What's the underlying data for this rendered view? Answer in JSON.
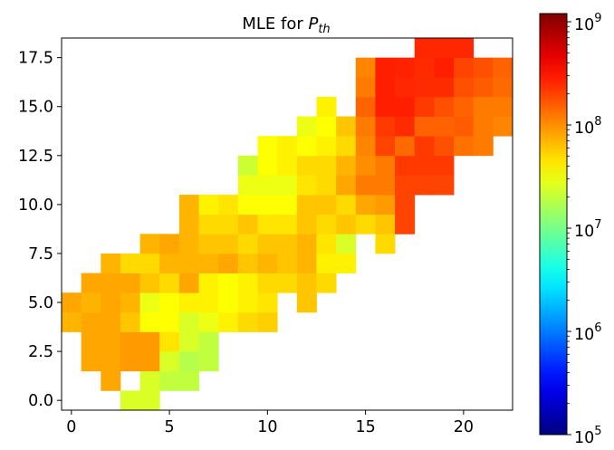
{
  "chart_data": {
    "type": "heatmap",
    "title": "MLE for P_th",
    "title_parts": {
      "prefix": "MLE for ",
      "var": "P",
      "sub": "th"
    },
    "xlabel": "",
    "ylabel": "",
    "xlim": [
      -0.5,
      22.5
    ],
    "ylim": [
      -0.5,
      18.5
    ],
    "x_ticks": [
      0,
      5,
      10,
      15,
      20
    ],
    "x_tick_labels": [
      "0",
      "5",
      "10",
      "15",
      "20"
    ],
    "y_ticks": [
      0.0,
      2.5,
      5.0,
      7.5,
      10.0,
      12.5,
      15.0,
      17.5
    ],
    "y_tick_labels": [
      "0.0",
      "2.5",
      "5.0",
      "7.5",
      "10.0",
      "12.5",
      "15.0",
      "17.5"
    ],
    "colormap": "jet",
    "color_scale": "log",
    "colorbar": {
      "position": "right",
      "range": [
        100000,
        1200000000
      ],
      "ticks": [
        100000,
        1000000,
        10000000,
        100000000,
        1000000000
      ],
      "tick_labels": [
        {
          "base": "10",
          "exp": "5"
        },
        {
          "base": "10",
          "exp": "6"
        },
        {
          "base": "10",
          "exp": "7"
        },
        {
          "base": "10",
          "exp": "8"
        },
        {
          "base": "10",
          "exp": "9"
        }
      ]
    },
    "grid": false,
    "cells": [
      [
        3,
        0,
        25000000.0
      ],
      [
        4,
        0,
        25000000.0
      ],
      [
        2,
        1,
        80000000.0
      ],
      [
        4,
        1,
        25000000.0
      ],
      [
        5,
        1,
        20000000.0
      ],
      [
        6,
        1,
        20000000.0
      ],
      [
        1,
        2,
        80000000.0
      ],
      [
        2,
        2,
        80000000.0
      ],
      [
        3,
        2,
        90000000.0
      ],
      [
        4,
        2,
        90000000.0
      ],
      [
        5,
        2,
        25000000.0
      ],
      [
        6,
        2,
        18000000.0
      ],
      [
        7,
        2,
        20000000.0
      ],
      [
        1,
        3,
        80000000.0
      ],
      [
        2,
        3,
        80000000.0
      ],
      [
        3,
        3,
        90000000.0
      ],
      [
        4,
        3,
        90000000.0
      ],
      [
        5,
        3,
        45000000.0
      ],
      [
        6,
        3,
        25000000.0
      ],
      [
        7,
        3,
        20000000.0
      ],
      [
        0,
        4,
        70000000.0
      ],
      [
        1,
        4,
        80000000.0
      ],
      [
        2,
        4,
        80000000.0
      ],
      [
        3,
        4,
        60000000.0
      ],
      [
        4,
        4,
        35000000.0
      ],
      [
        5,
        4,
        35000000.0
      ],
      [
        6,
        4,
        25000000.0
      ],
      [
        7,
        4,
        30000000.0
      ],
      [
        8,
        4,
        40000000.0
      ],
      [
        9,
        4,
        50000000.0
      ],
      [
        10,
        4,
        55000000.0
      ],
      [
        0,
        5,
        80000000.0
      ],
      [
        1,
        5,
        70000000.0
      ],
      [
        2,
        5,
        80000000.0
      ],
      [
        3,
        5,
        70000000.0
      ],
      [
        4,
        5,
        30000000.0
      ],
      [
        5,
        5,
        35000000.0
      ],
      [
        6,
        5,
        40000000.0
      ],
      [
        7,
        5,
        40000000.0
      ],
      [
        8,
        5,
        35000000.0
      ],
      [
        9,
        5,
        40000000.0
      ],
      [
        10,
        5,
        45000000.0
      ],
      [
        12,
        5,
        60000000.0
      ],
      [
        1,
        6,
        80000000.0
      ],
      [
        2,
        6,
        80000000.0
      ],
      [
        3,
        6,
        80000000.0
      ],
      [
        4,
        6,
        60000000.0
      ],
      [
        5,
        6,
        50000000.0
      ],
      [
        6,
        6,
        80000000.0
      ],
      [
        7,
        6,
        40000000.0
      ],
      [
        8,
        6,
        35000000.0
      ],
      [
        9,
        6,
        40000000.0
      ],
      [
        10,
        6,
        50000000.0
      ],
      [
        11,
        6,
        50000000.0
      ],
      [
        12,
        6,
        60000000.0
      ],
      [
        13,
        6,
        50000000.0
      ],
      [
        2,
        7,
        70000000.0
      ],
      [
        3,
        7,
        50000000.0
      ],
      [
        4,
        7,
        50000000.0
      ],
      [
        5,
        7,
        70000000.0
      ],
      [
        6,
        7,
        70000000.0
      ],
      [
        7,
        7,
        70000000.0
      ],
      [
        8,
        7,
        80000000.0
      ],
      [
        9,
        7,
        60000000.0
      ],
      [
        10,
        7,
        70000000.0
      ],
      [
        11,
        7,
        60000000.0
      ],
      [
        12,
        7,
        70000000.0
      ],
      [
        13,
        7,
        40000000.0
      ],
      [
        14,
        7,
        40000000.0
      ],
      [
        4,
        8,
        70000000.0
      ],
      [
        5,
        8,
        80000000.0
      ],
      [
        6,
        8,
        70000000.0
      ],
      [
        7,
        8,
        60000000.0
      ],
      [
        8,
        8,
        60000000.0
      ],
      [
        9,
        8,
        50000000.0
      ],
      [
        10,
        8,
        60000000.0
      ],
      [
        11,
        8,
        60000000.0
      ],
      [
        12,
        8,
        70000000.0
      ],
      [
        13,
        8,
        45000000.0
      ],
      [
        14,
        8,
        25000000.0
      ],
      [
        16,
        8,
        50000000.0
      ],
      [
        6,
        9,
        70000000.0
      ],
      [
        7,
        9,
        50000000.0
      ],
      [
        8,
        9,
        50000000.0
      ],
      [
        9,
        9,
        60000000.0
      ],
      [
        10,
        9,
        45000000.0
      ],
      [
        11,
        9,
        45000000.0
      ],
      [
        12,
        9,
        60000000.0
      ],
      [
        13,
        9,
        50000000.0
      ],
      [
        14,
        9,
        60000000.0
      ],
      [
        15,
        9,
        50000000.0
      ],
      [
        16,
        9,
        60000000.0
      ],
      [
        17,
        9,
        200000000.0
      ],
      [
        6,
        10,
        70000000.0
      ],
      [
        7,
        10,
        40000000.0
      ],
      [
        8,
        10,
        45000000.0
      ],
      [
        9,
        10,
        35000000.0
      ],
      [
        10,
        10,
        35000000.0
      ],
      [
        11,
        10,
        35000000.0
      ],
      [
        12,
        10,
        60000000.0
      ],
      [
        13,
        10,
        60000000.0
      ],
      [
        14,
        10,
        50000000.0
      ],
      [
        15,
        10,
        80000000.0
      ],
      [
        16,
        10,
        90000000.0
      ],
      [
        17,
        10,
        200000000.0
      ],
      [
        9,
        11,
        30000000.0
      ],
      [
        10,
        11,
        30000000.0
      ],
      [
        11,
        11,
        30000000.0
      ],
      [
        12,
        11,
        45000000.0
      ],
      [
        13,
        11,
        50000000.0
      ],
      [
        14,
        11,
        80000000.0
      ],
      [
        15,
        11,
        120000000.0
      ],
      [
        16,
        11,
        120000000.0
      ],
      [
        17,
        11,
        200000000.0
      ],
      [
        18,
        11,
        200000000.0
      ],
      [
        19,
        11,
        200000000.0
      ],
      [
        9,
        12,
        22000000.0
      ],
      [
        10,
        12,
        35000000.0
      ],
      [
        11,
        12,
        40000000.0
      ],
      [
        12,
        12,
        50000000.0
      ],
      [
        13,
        12,
        50000000.0
      ],
      [
        14,
        12,
        70000000.0
      ],
      [
        15,
        12,
        100000000.0
      ],
      [
        16,
        12,
        120000000.0
      ],
      [
        17,
        12,
        220000000.0
      ],
      [
        18,
        12,
        220000000.0
      ],
      [
        19,
        12,
        220000000.0
      ],
      [
        10,
        13,
        35000000.0
      ],
      [
        11,
        13,
        40000000.0
      ],
      [
        12,
        13,
        35000000.0
      ],
      [
        13,
        13,
        40000000.0
      ],
      [
        14,
        13,
        50000000.0
      ],
      [
        15,
        13,
        110000000.0
      ],
      [
        16,
        13,
        200000000.0
      ],
      [
        17,
        13,
        140000000.0
      ],
      [
        18,
        13,
        220000000.0
      ],
      [
        19,
        13,
        180000000.0
      ],
      [
        20,
        13,
        130000000.0
      ],
      [
        21,
        13,
        120000000.0
      ],
      [
        12,
        14,
        30000000.0
      ],
      [
        13,
        14,
        35000000.0
      ],
      [
        14,
        14,
        60000000.0
      ],
      [
        15,
        14,
        120000000.0
      ],
      [
        16,
        14,
        220000000.0
      ],
      [
        17,
        14,
        250000000.0
      ],
      [
        18,
        14,
        150000000.0
      ],
      [
        19,
        14,
        150000000.0
      ],
      [
        20,
        14,
        160000000.0
      ],
      [
        21,
        14,
        120000000.0
      ],
      [
        22,
        14,
        110000000.0
      ],
      [
        13,
        15,
        40000000.0
      ],
      [
        15,
        15,
        150000000.0
      ],
      [
        16,
        15,
        280000000.0
      ],
      [
        17,
        15,
        280000000.0
      ],
      [
        18,
        15,
        220000000.0
      ],
      [
        19,
        15,
        180000000.0
      ],
      [
        20,
        15,
        150000000.0
      ],
      [
        21,
        15,
        120000000.0
      ],
      [
        22,
        15,
        120000000.0
      ],
      [
        15,
        16,
        120000000.0
      ],
      [
        16,
        16,
        280000000.0
      ],
      [
        17,
        16,
        260000000.0
      ],
      [
        18,
        16,
        250000000.0
      ],
      [
        19,
        16,
        250000000.0
      ],
      [
        20,
        16,
        180000000.0
      ],
      [
        21,
        16,
        160000000.0
      ],
      [
        22,
        16,
        140000000.0
      ],
      [
        15,
        17,
        110000000.0
      ],
      [
        16,
        17,
        280000000.0
      ],
      [
        17,
        17,
        270000000.0
      ],
      [
        18,
        17,
        250000000.0
      ],
      [
        19,
        17,
        280000000.0
      ],
      [
        20,
        17,
        200000000.0
      ],
      [
        21,
        17,
        180000000.0
      ],
      [
        22,
        17,
        150000000.0
      ],
      [
        18,
        18,
        260000000.0
      ],
      [
        19,
        18,
        260000000.0
      ],
      [
        20,
        18,
        260000000.0
      ]
    ]
  }
}
